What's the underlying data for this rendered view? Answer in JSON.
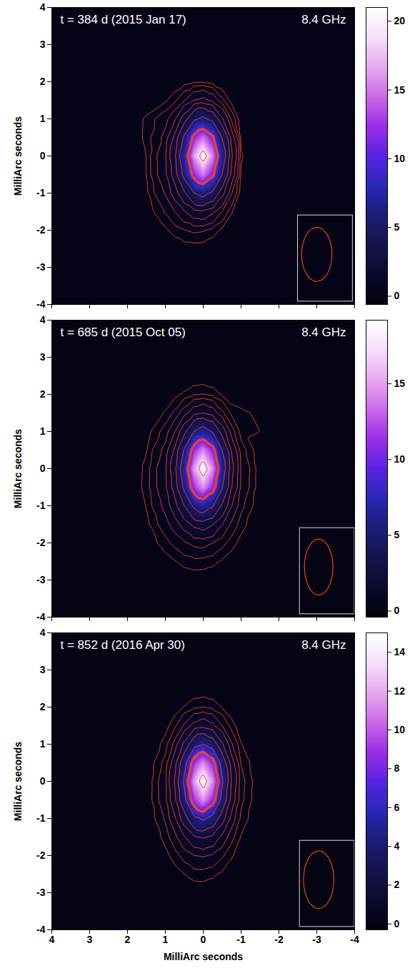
{
  "chart_data": [
    {
      "type": "heatmap",
      "title": "t = 384 d (2015 Jan 17)",
      "subtitle": "8.4 GHz",
      "ylabel": "MilliArc seconds",
      "xlim": [
        4,
        -4
      ],
      "ylim": [
        -4,
        4
      ],
      "xticks": [
        4,
        3,
        2,
        1,
        0,
        -1,
        -2,
        -3,
        -4
      ],
      "yticks": [
        -4,
        -3,
        -2,
        -1,
        0,
        1,
        2,
        3,
        4
      ],
      "tick_labels": "y",
      "grid": false,
      "color": "#e8402a",
      "contour_levels": [
        0.2,
        0.35,
        0.6,
        1,
        1.7,
        2.9,
        5,
        10.5,
        19
      ],
      "thick_contour_level": 10.5,
      "beam": {
        "x": -3.0,
        "y": -2.65,
        "width": 0.8,
        "height": 1.45
      },
      "colorbar": {
        "range": [
          -0.6,
          21
        ],
        "ticks": [
          0,
          5,
          10,
          15,
          20
        ]
      },
      "image": {
        "x": [
          4,
          2,
          1.5,
          1,
          0.75,
          0.5,
          0.25,
          0,
          -0.25,
          -0.5,
          -0.75,
          -1,
          -1.5,
          -4
        ],
        "y": [
          4,
          2.5,
          2,
          1.5,
          1,
          0.5,
          0,
          -0.5,
          -1,
          -1.5,
          -2,
          -2.5,
          -3,
          -4
        ],
        "values": [
          [
            0,
            0,
            0,
            0,
            0,
            0,
            0,
            0,
            0,
            0,
            0,
            0,
            0,
            0
          ],
          [
            0,
            0,
            0,
            0.02,
            0.02,
            0.03,
            0.03,
            0.03,
            0.02,
            0.01,
            0.01,
            0,
            0,
            0
          ],
          [
            0,
            0,
            0.02,
            0.06,
            0.09,
            0.13,
            0.17,
            0.18,
            0.13,
            0.07,
            0.03,
            0.01,
            0,
            0
          ],
          [
            0,
            0.01,
            0.04,
            0.17,
            0.3,
            0.57,
            0.96,
            1.14,
            0.85,
            0.4,
            0.13,
            0.04,
            0,
            0
          ],
          [
            0,
            0.01,
            0.24,
            0.49,
            0.88,
            2.19,
            4.33,
            5.47,
            4.11,
            1.83,
            0.52,
            0.08,
            0.01,
            0
          ],
          [
            0,
            0.02,
            0.25,
            0.7,
            1.9,
            5.46,
            11.52,
            14.84,
            11.14,
            4.87,
            1.29,
            0.15,
            0.01,
            0
          ],
          [
            0,
            0.03,
            0.2,
            0.93,
            2.58,
            7.6,
            16.16,
            20.88,
            15.67,
            6.83,
            1.8,
            0.22,
            0.02,
            0
          ],
          [
            0,
            0.03,
            0.2,
            0.88,
            2.16,
            5.79,
            11.86,
            15.15,
            11.37,
            5.01,
            1.37,
            0.18,
            0.02,
            0
          ],
          [
            0,
            0.02,
            0.16,
            0.63,
            1.24,
            2.64,
            4.81,
            5.89,
            4.42,
            2.03,
            0.62,
            0.12,
            0.01,
            0
          ],
          [
            0,
            0.01,
            0.1,
            0.37,
            0.6,
            0.94,
            1.35,
            1.48,
            1.11,
            0.56,
            0.22,
            0.06,
            0.01,
            0
          ],
          [
            0,
            0.01,
            0.05,
            0.17,
            0.26,
            0.34,
            0.39,
            0.37,
            0.28,
            0.16,
            0.08,
            0.03,
            0,
            0
          ],
          [
            0,
            0,
            0.02,
            0.06,
            0.09,
            0.12,
            0.12,
            0.11,
            0.08,
            0.05,
            0.03,
            0.01,
            0,
            0
          ],
          [
            0,
            0,
            0.01,
            0.02,
            0.03,
            0.03,
            0.04,
            0.03,
            0.02,
            0.01,
            0.01,
            0,
            0,
            0
          ],
          [
            0,
            0,
            0,
            0,
            0,
            0,
            0,
            0,
            0,
            0,
            0,
            0,
            0,
            0
          ]
        ]
      }
    },
    {
      "type": "heatmap",
      "title": "t = 685 d (2015 Oct 05)",
      "subtitle": "8.4 GHz",
      "ylabel": "MilliArc seconds",
      "xlim": [
        4,
        -4
      ],
      "ylim": [
        -4,
        4
      ],
      "xticks": [
        4,
        3,
        2,
        1,
        0,
        -1,
        -2,
        -3,
        -4
      ],
      "yticks": [
        -4,
        -3,
        -2,
        -1,
        0,
        1,
        2,
        3,
        4
      ],
      "tick_labels": "y",
      "grid": false,
      "color": "#e8402a",
      "contour_levels": [
        0.2,
        0.35,
        0.6,
        1,
        1.7,
        2.9,
        5,
        9.5,
        17
      ],
      "thick_contour_level": 9.5,
      "beam": {
        "x": -3.05,
        "y": -2.65,
        "width": 0.75,
        "height": 1.5
      },
      "colorbar": {
        "range": [
          -0.4,
          19.2
        ],
        "ticks": [
          0,
          5,
          10,
          15
        ]
      },
      "image": {
        "x": [
          4,
          2,
          1.5,
          1,
          0.75,
          0.5,
          0.25,
          0,
          -0.25,
          -0.5,
          -0.75,
          -1,
          -1.5,
          -4
        ],
        "y": [
          4,
          2.5,
          2,
          1.5,
          1,
          0.5,
          0,
          -0.5,
          -1,
          -1.5,
          -2,
          -2.5,
          -3,
          -4
        ],
        "values": [
          [
            0,
            0,
            0,
            0,
            0,
            0,
            0,
            0,
            0,
            0,
            0,
            0,
            0,
            0
          ],
          [
            0,
            0,
            0.01,
            0.04,
            0.05,
            0.07,
            0.07,
            0.07,
            0.06,
            0.05,
            0.03,
            0.02,
            0,
            0
          ],
          [
            0,
            0.01,
            0.03,
            0.1,
            0.15,
            0.23,
            0.32,
            0.35,
            0.29,
            0.18,
            0.1,
            0.05,
            0.01,
            0
          ],
          [
            0,
            0.01,
            0.07,
            0.22,
            0.4,
            0.78,
            1.36,
            1.66,
            1.3,
            0.68,
            0.29,
            0.25,
            0.15,
            0
          ],
          [
            0,
            0.02,
            0.13,
            0.44,
            0.97,
            2.42,
            4.84,
            6.17,
            4.73,
            2.24,
            0.76,
            0.26,
            0.2,
            0
          ],
          [
            0,
            0.04,
            0.19,
            0.71,
            1.84,
            5.24,
            11.04,
            14.28,
            10.86,
            4.95,
            1.53,
            0.45,
            0.08,
            0
          ],
          [
            0,
            0.05,
            0.24,
            0.91,
            2.4,
            6.95,
            14.73,
            19.09,
            14.52,
            6.59,
            2.01,
            0.57,
            0.1,
            0
          ],
          [
            0,
            0.05,
            0.25,
            0.89,
            2.09,
            5.56,
            11.4,
            14.64,
            11.18,
            5.19,
            1.69,
            0.54,
            0.1,
            0
          ],
          [
            0,
            0.04,
            0.21,
            0.71,
            1.35,
            2.92,
            5.4,
            6.72,
            5.2,
            2.6,
            1.0,
            0.41,
            0.08,
            0
          ],
          [
            0,
            0.03,
            0.15,
            0.48,
            0.77,
            1.25,
            1.89,
            2.18,
            1.75,
            1.02,
            0.52,
            0.26,
            0.06,
            0
          ],
          [
            0,
            0.02,
            0.09,
            0.28,
            0.41,
            0.55,
            0.68,
            0.72,
            0.6,
            0.42,
            0.26,
            0.15,
            0.04,
            0
          ],
          [
            0,
            0.01,
            0.04,
            0.13,
            0.19,
            0.25,
            0.28,
            0.27,
            0.24,
            0.18,
            0.12,
            0.07,
            0.02,
            0
          ],
          [
            0,
            0,
            0.02,
            0.05,
            0.08,
            0.1,
            0.11,
            0.11,
            0.1,
            0.07,
            0.05,
            0.03,
            0.01,
            0
          ],
          [
            0,
            0,
            0,
            0,
            0,
            0,
            0,
            0,
            0,
            0,
            0,
            0,
            0,
            0
          ]
        ]
      }
    },
    {
      "type": "heatmap",
      "title": "t = 852 d (2016 Apr 30)",
      "subtitle": "8.4 GHz",
      "ylabel": "MilliArc seconds",
      "xlabel": "MilliArc seconds",
      "xlim": [
        4,
        -4
      ],
      "ylim": [
        -4,
        4
      ],
      "xticks": [
        4,
        3,
        2,
        1,
        0,
        -1,
        -2,
        -3,
        -4
      ],
      "yticks": [
        -4,
        -3,
        -2,
        -1,
        0,
        1,
        2,
        3,
        4
      ],
      "grid": false,
      "color": "#e8402a",
      "contour_levels": [
        0.2,
        0.35,
        0.6,
        1,
        1.7,
        2.9,
        5,
        7.5,
        13.5
      ],
      "thick_contour_level": 7.5,
      "beam": {
        "x": -3.05,
        "y": -2.65,
        "width": 0.8,
        "height": 1.55
      },
      "colorbar": {
        "range": [
          -0.3,
          15
        ],
        "ticks": [
          0,
          2,
          4,
          6,
          8,
          10,
          12,
          14
        ]
      },
      "image": {
        "x": [
          4,
          2,
          1.5,
          1,
          0.75,
          0.5,
          0.25,
          0,
          -0.25,
          -0.5,
          -0.75,
          -1,
          -1.5,
          -4
        ],
        "y": [
          4,
          2.5,
          2,
          1.5,
          1,
          0.5,
          0,
          -0.5,
          -1,
          -1.5,
          -2,
          -2.5,
          -3,
          -4
        ],
        "values": [
          [
            0,
            0,
            0,
            0,
            0,
            0,
            0,
            0,
            0,
            0,
            0,
            0,
            0,
            0
          ],
          [
            0,
            0,
            0.01,
            0.03,
            0.05,
            0.07,
            0.09,
            0.09,
            0.08,
            0.06,
            0.04,
            0.02,
            0,
            0
          ],
          [
            0,
            0,
            0.01,
            0.07,
            0.12,
            0.21,
            0.3,
            0.34,
            0.29,
            0.19,
            0.1,
            0.05,
            0.01,
            0
          ],
          [
            0,
            0,
            0.02,
            0.14,
            0.3,
            0.65,
            1.15,
            1.41,
            1.12,
            0.6,
            0.26,
            0.11,
            0.02,
            0
          ],
          [
            0,
            0,
            0.04,
            0.26,
            0.71,
            1.91,
            3.86,
            4.94,
            3.81,
            1.84,
            0.64,
            0.21,
            0.03,
            0
          ],
          [
            0,
            0.01,
            0.06,
            0.42,
            1.34,
            4.06,
            8.66,
            11.24,
            8.59,
            3.96,
            1.23,
            0.34,
            0.04,
            0
          ],
          [
            0,
            0.01,
            0.07,
            0.52,
            1.72,
            5.35,
            11.49,
            14.95,
            11.41,
            5.22,
            1.59,
            0.43,
            0.05,
            0
          ],
          [
            0,
            0.01,
            0.08,
            0.5,
            1.47,
            4.26,
            8.9,
            11.49,
            8.82,
            4.13,
            1.34,
            0.4,
            0.05,
            0
          ],
          [
            0,
            0.01,
            0.06,
            0.38,
            0.91,
            2.22,
            4.24,
            5.34,
            4.17,
            2.1,
            0.8,
            0.3,
            0.04,
            0
          ],
          [
            0,
            0,
            0.05,
            0.25,
            0.5,
            0.95,
            1.52,
            1.8,
            1.47,
            0.86,
            0.42,
            0.19,
            0.03,
            0
          ],
          [
            0,
            0,
            0.03,
            0.15,
            0.27,
            0.43,
            0.58,
            0.63,
            0.55,
            0.38,
            0.22,
            0.11,
            0.02,
            0
          ],
          [
            0,
            0,
            0.01,
            0.07,
            0.13,
            0.2,
            0.25,
            0.26,
            0.23,
            0.17,
            0.11,
            0.06,
            0.01,
            0
          ],
          [
            0,
            0,
            0.01,
            0.03,
            0.06,
            0.08,
            0.11,
            0.11,
            0.1,
            0.07,
            0.05,
            0.02,
            0,
            0
          ],
          [
            0,
            0,
            0,
            0,
            0,
            0,
            0,
            0,
            0,
            0,
            0,
            0,
            0,
            0
          ]
        ]
      }
    }
  ]
}
